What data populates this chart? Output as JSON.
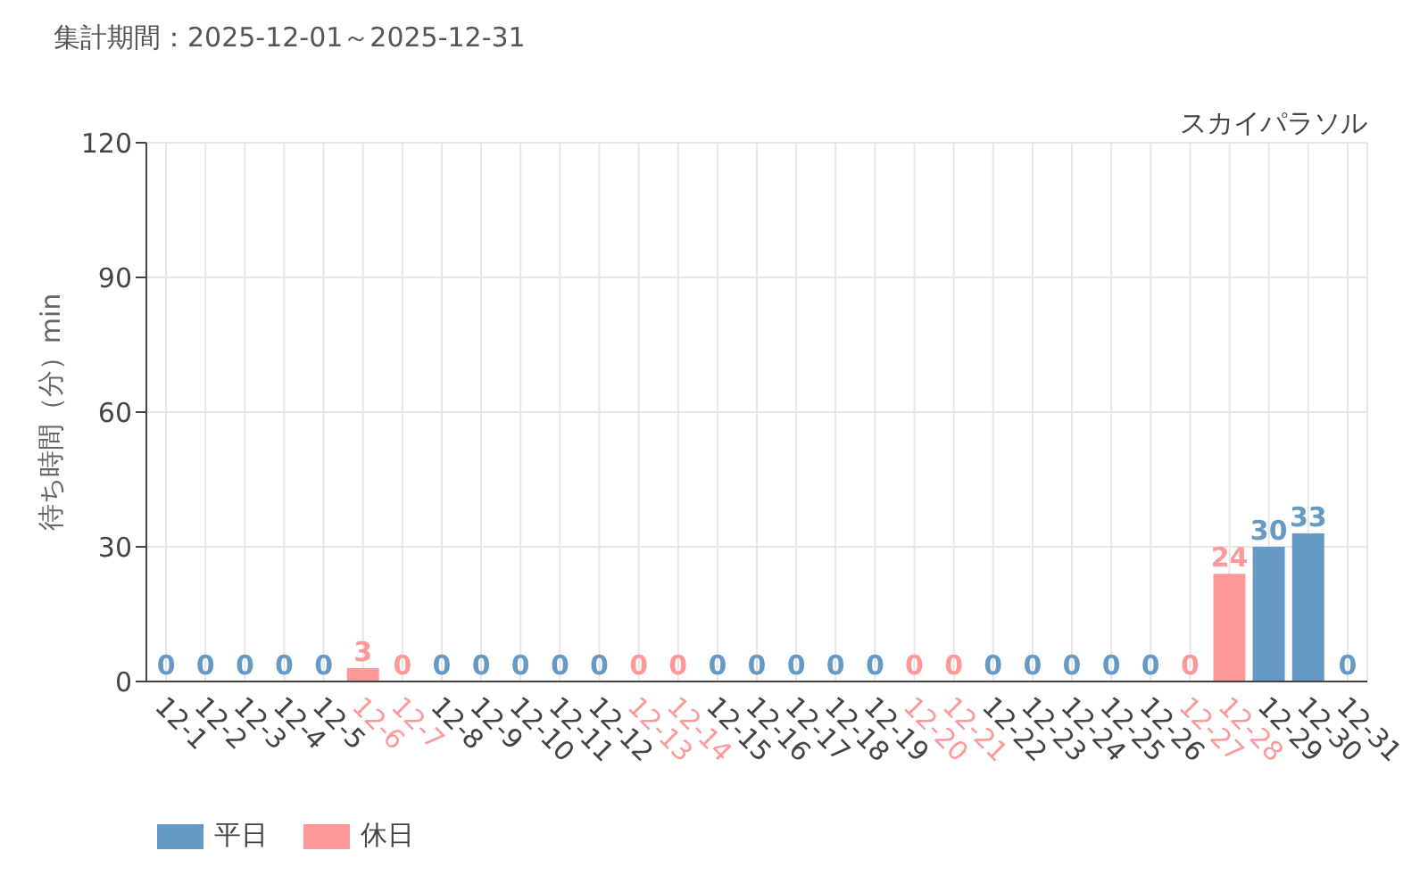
{
  "chart_data": {
    "type": "bar",
    "title": "集計期間：2025-12-01～2025-12-31",
    "subtitle": "スカイパラソル",
    "ylabel": "待ち時間（分）min",
    "categories": [
      "12-1",
      "12-2",
      "12-3",
      "12-4",
      "12-5",
      "12-6",
      "12-7",
      "12-8",
      "12-9",
      "12-10",
      "12-11",
      "12-12",
      "12-13",
      "12-14",
      "12-15",
      "12-16",
      "12-17",
      "12-18",
      "12-19",
      "12-20",
      "12-21",
      "12-22",
      "12-23",
      "12-24",
      "12-25",
      "12-26",
      "12-27",
      "12-28",
      "12-29",
      "12-30",
      "12-31"
    ],
    "series": [
      {
        "name": "平日",
        "color": "#6699c4",
        "values": [
          0,
          0,
          0,
          0,
          0,
          null,
          null,
          0,
          0,
          0,
          0,
          0,
          null,
          null,
          0,
          0,
          0,
          0,
          0,
          null,
          null,
          0,
          0,
          0,
          0,
          0,
          null,
          null,
          30,
          33,
          0
        ]
      },
      {
        "name": "休日",
        "color": "#ff9999",
        "values": [
          null,
          null,
          null,
          null,
          null,
          3,
          0,
          null,
          null,
          null,
          null,
          null,
          0,
          0,
          null,
          null,
          null,
          null,
          null,
          0,
          0,
          null,
          null,
          null,
          null,
          null,
          0,
          24,
          null,
          null,
          null
        ]
      }
    ],
    "stacked": true,
    "ylim": [
      0,
      120
    ],
    "yticks": [
      0,
      30,
      60,
      90,
      120
    ],
    "grid": true,
    "legend": "bottom left",
    "data_labels": true
  }
}
